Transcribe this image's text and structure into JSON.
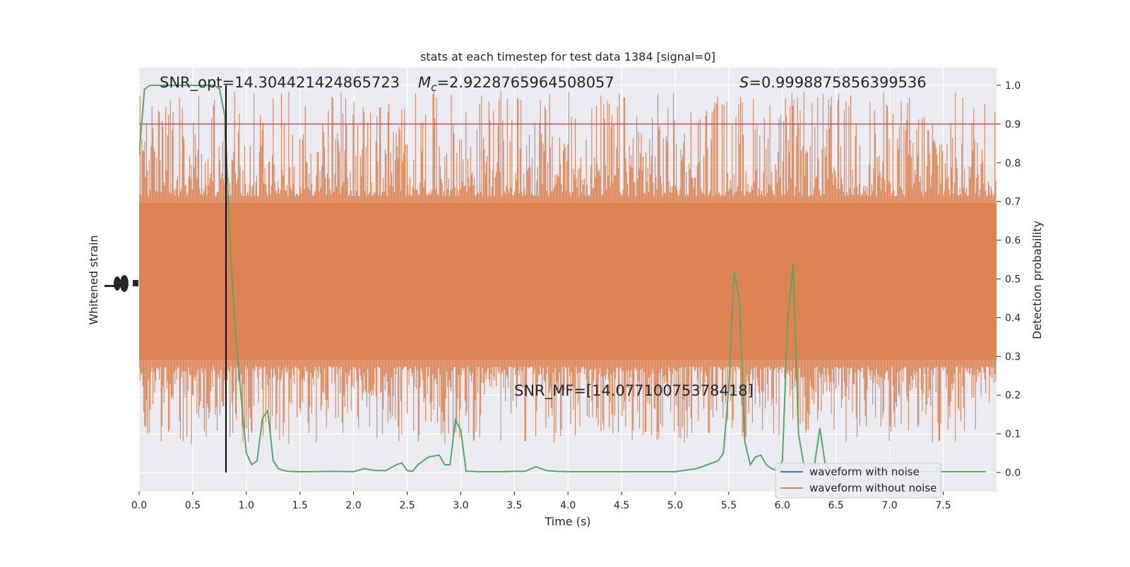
{
  "chart_data": {
    "type": "line",
    "title": "stats at each timestep for test data 1384 [signal=0]",
    "xlabel": "Time (s)",
    "ylabel_left": "Whitened strain",
    "ylabel_right": "Detection probability",
    "xlim": [
      0,
      8
    ],
    "ylim_right": [
      -0.05,
      1.05
    ],
    "x_ticks": [
      "0.0",
      "0.5",
      "1.0",
      "1.5",
      "2.0",
      "2.5",
      "3.0",
      "3.5",
      "4.0",
      "4.5",
      "5.0",
      "5.5",
      "6.0",
      "6.5",
      "7.0",
      "7.5"
    ],
    "x_tick_values": [
      0,
      0.5,
      1,
      1.5,
      2,
      2.5,
      3,
      3.5,
      4,
      4.5,
      5,
      5.5,
      6,
      6.5,
      7,
      7.5
    ],
    "y_ticks_right": [
      "0.0",
      "0.1",
      "0.2",
      "0.3",
      "0.4",
      "0.5",
      "0.6",
      "0.7",
      "0.8",
      "0.9",
      "1.0"
    ],
    "y_tick_values_right": [
      0,
      0.1,
      0.2,
      0.3,
      0.4,
      0.5,
      0.6,
      0.7,
      0.8,
      0.9,
      1.0
    ],
    "annotations": {
      "snr_opt": "SNR_opt=14.304421424865723",
      "mc_prefix": "M",
      "mc_sub": "c",
      "mc_value": "=2.9228765964508057",
      "s_prefix": "S",
      "s_value": "=0.9998875856399536",
      "snr_mf": "SNR_MF=[14.07710075378418]"
    },
    "threshold": 0.9,
    "marker_time": 0.81,
    "grid": true,
    "legend_position": "lower-right",
    "series": [
      {
        "name": "waveform with noise",
        "color": "#4c72b0",
        "values": []
      },
      {
        "name": "waveform without noise",
        "color": "#dd8452",
        "values": []
      },
      {
        "color": "#55a868",
        "x": [
          0.0,
          0.05,
          0.1,
          0.15,
          0.2,
          0.3,
          0.4,
          0.5,
          0.6,
          0.7,
          0.75,
          0.8,
          0.85,
          0.9,
          0.95,
          1.0,
          1.05,
          1.1,
          1.15,
          1.2,
          1.25,
          1.3,
          1.35,
          1.4,
          1.5,
          1.6,
          1.8,
          2.0,
          2.1,
          2.2,
          2.3,
          2.4,
          2.45,
          2.5,
          2.55,
          2.6,
          2.7,
          2.8,
          2.85,
          2.9,
          2.95,
          3.0,
          3.05,
          3.1,
          3.15,
          3.2,
          3.4,
          3.5,
          3.6,
          3.7,
          3.8,
          3.9,
          4.0,
          4.2,
          4.5,
          5.0,
          5.2,
          5.3,
          5.4,
          5.45,
          5.5,
          5.55,
          5.6,
          5.65,
          5.7,
          5.75,
          5.8,
          5.85,
          5.9,
          5.95,
          6.0,
          6.05,
          6.1,
          6.15,
          6.2,
          6.25,
          6.3,
          6.35,
          6.4,
          6.45,
          6.5,
          6.6,
          6.7,
          6.8,
          7.0,
          7.5,
          7.9
        ],
        "values": [
          0.82,
          0.99,
          1.0,
          1.0,
          1.0,
          1.0,
          1.0,
          1.0,
          1.0,
          1.0,
          0.99,
          0.92,
          0.58,
          0.36,
          0.2,
          0.05,
          0.02,
          0.03,
          0.14,
          0.16,
          0.03,
          0.01,
          0.005,
          0.003,
          0.002,
          0.002,
          0.003,
          0.002,
          0.01,
          0.005,
          0.005,
          0.02,
          0.025,
          0.005,
          0.003,
          0.02,
          0.04,
          0.045,
          0.02,
          0.02,
          0.135,
          0.11,
          0.003,
          0.003,
          0.002,
          0.002,
          0.002,
          0.003,
          0.003,
          0.015,
          0.005,
          0.003,
          0.002,
          0.002,
          0.002,
          0.002,
          0.01,
          0.02,
          0.03,
          0.05,
          0.22,
          0.52,
          0.44,
          0.08,
          0.02,
          0.04,
          0.045,
          0.02,
          0.01,
          0.005,
          0.03,
          0.4,
          0.54,
          0.1,
          0.02,
          0.01,
          0.02,
          0.115,
          0.02,
          0.005,
          0.003,
          0.002,
          0.002,
          0.002,
          0.002,
          0.002,
          0.002
        ]
      }
    ]
  }
}
